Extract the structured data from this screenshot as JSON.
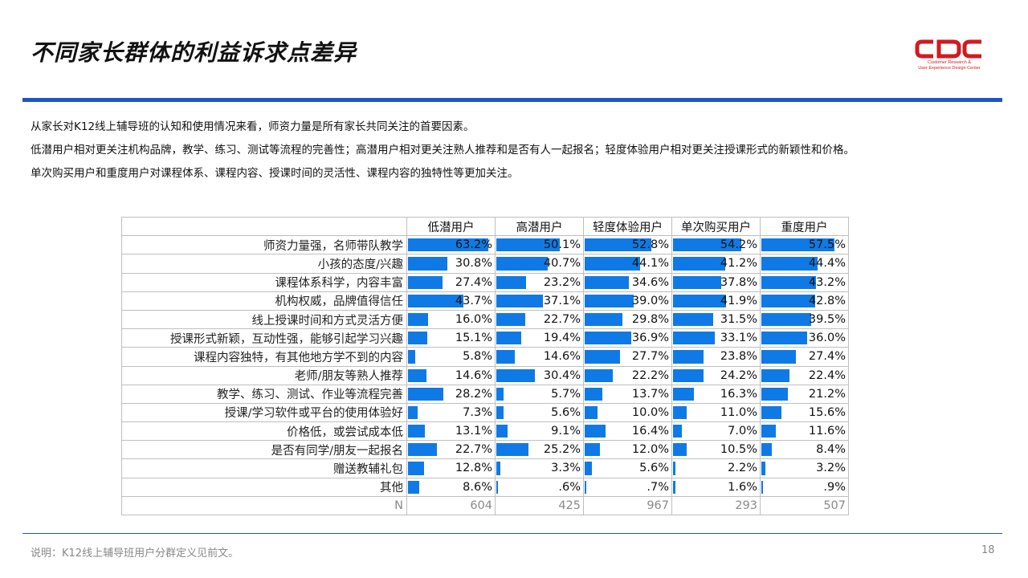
{
  "title": "不同家长群体的利益诉求点差异",
  "logo": {
    "text": "CDC",
    "sub1": "Customer Research &",
    "sub2": "User Experience Design Center"
  },
  "description": [
    "从家长对K12线上辅导班的认知和使用情况来看，师资力量是所有家长共同关注的首要因素。",
    "低潜用户相对更关注机构品牌，教学、练习、测试等流程的完善性；高潜用户相对更关注熟人推荐和是否有人一起报名；轻度体验用户相对更关注授课形式的新颖性和价格。",
    "单次购买用户和重度用户对课程体系、课程内容、授课时间的灵活性、课程内容的独特性等更加关注。"
  ],
  "colors": {
    "bar": "#0f7ae6",
    "accent_line": "#1a56c6",
    "logo_red": "#d11b20"
  },
  "chart_data": {
    "type": "table",
    "series_names": [
      "低潜用户",
      "高潜用户",
      "轻度体验用户",
      "单次购买用户",
      "重度用户"
    ],
    "rows": [
      {
        "label": "师资力量强，名师带队教学",
        "values": [
          63.2,
          50.1,
          52.8,
          54.2,
          57.5
        ],
        "display": [
          "63.2%",
          "50.1%",
          "52.8%",
          "54.2%",
          "57.5%"
        ]
      },
      {
        "label": "小孩的态度/兴趣",
        "values": [
          30.8,
          40.7,
          44.1,
          41.2,
          44.4
        ],
        "display": [
          "30.8%",
          "40.7%",
          "44.1%",
          "41.2%",
          "44.4%"
        ]
      },
      {
        "label": "课程体系科学，内容丰富",
        "values": [
          27.4,
          23.2,
          34.6,
          37.8,
          43.2
        ],
        "display": [
          "27.4%",
          "23.2%",
          "34.6%",
          "37.8%",
          "43.2%"
        ]
      },
      {
        "label": "机构权威，品牌值得信任",
        "values": [
          43.7,
          37.1,
          39.0,
          41.9,
          42.8
        ],
        "display": [
          "43.7%",
          "37.1%",
          "39.0%",
          "41.9%",
          "42.8%"
        ]
      },
      {
        "label": "线上授课时间和方式灵活方便",
        "values": [
          16.0,
          22.7,
          29.8,
          31.5,
          39.5
        ],
        "display": [
          "16.0%",
          "22.7%",
          "29.8%",
          "31.5%",
          "39.5%"
        ]
      },
      {
        "label": "授课形式新颖，互动性强，能够引起学习兴趣",
        "values": [
          15.1,
          19.4,
          36.9,
          33.1,
          36.0
        ],
        "display": [
          "15.1%",
          "19.4%",
          "36.9%",
          "33.1%",
          "36.0%"
        ]
      },
      {
        "label": "课程内容独特，有其他地方学不到的内容",
        "values": [
          5.8,
          14.6,
          27.7,
          23.8,
          27.4
        ],
        "display": [
          "5.8%",
          "14.6%",
          "27.7%",
          "23.8%",
          "27.4%"
        ]
      },
      {
        "label": "老师/朋友等熟人推荐",
        "values": [
          14.6,
          30.4,
          22.2,
          24.2,
          22.4
        ],
        "display": [
          "14.6%",
          "30.4%",
          "22.2%",
          "24.2%",
          "22.4%"
        ]
      },
      {
        "label": "教学、练习、测试、作业等流程完善",
        "values": [
          28.2,
          5.7,
          13.7,
          16.3,
          21.2
        ],
        "display": [
          "28.2%",
          "5.7%",
          "13.7%",
          "16.3%",
          "21.2%"
        ]
      },
      {
        "label": "授课/学习软件或平台的使用体验好",
        "values": [
          7.3,
          5.6,
          10.0,
          11.0,
          15.6
        ],
        "display": [
          "7.3%",
          "5.6%",
          "10.0%",
          "11.0%",
          "15.6%"
        ]
      },
      {
        "label": "价格低，或尝试成本低",
        "values": [
          13.1,
          9.1,
          16.4,
          7.0,
          11.6
        ],
        "display": [
          "13.1%",
          "9.1%",
          "16.4%",
          "7.0%",
          "11.6%"
        ]
      },
      {
        "label": "是否有同学/朋友一起报名",
        "values": [
          22.7,
          25.2,
          12.0,
          10.5,
          8.4
        ],
        "display": [
          "22.7%",
          "25.2%",
          "12.0%",
          "10.5%",
          "8.4%"
        ]
      },
      {
        "label": "赠送教辅礼包",
        "values": [
          12.8,
          3.3,
          5.6,
          2.2,
          3.2
        ],
        "display": [
          "12.8%",
          "3.3%",
          "5.6%",
          "2.2%",
          "3.2%"
        ]
      },
      {
        "label": "其他",
        "values": [
          8.6,
          0.6,
          0.7,
          1.6,
          0.9
        ],
        "display": [
          "8.6%",
          ".6%",
          ".7%",
          "1.6%",
          ".9%"
        ]
      }
    ],
    "n_label": "N",
    "n_values": [
      "604",
      "425",
      "967",
      "293",
      "507"
    ],
    "bar_max": 66
  },
  "footer": {
    "note": "说明：K12线上辅导班用户分群定义见前文。",
    "page": "18"
  }
}
